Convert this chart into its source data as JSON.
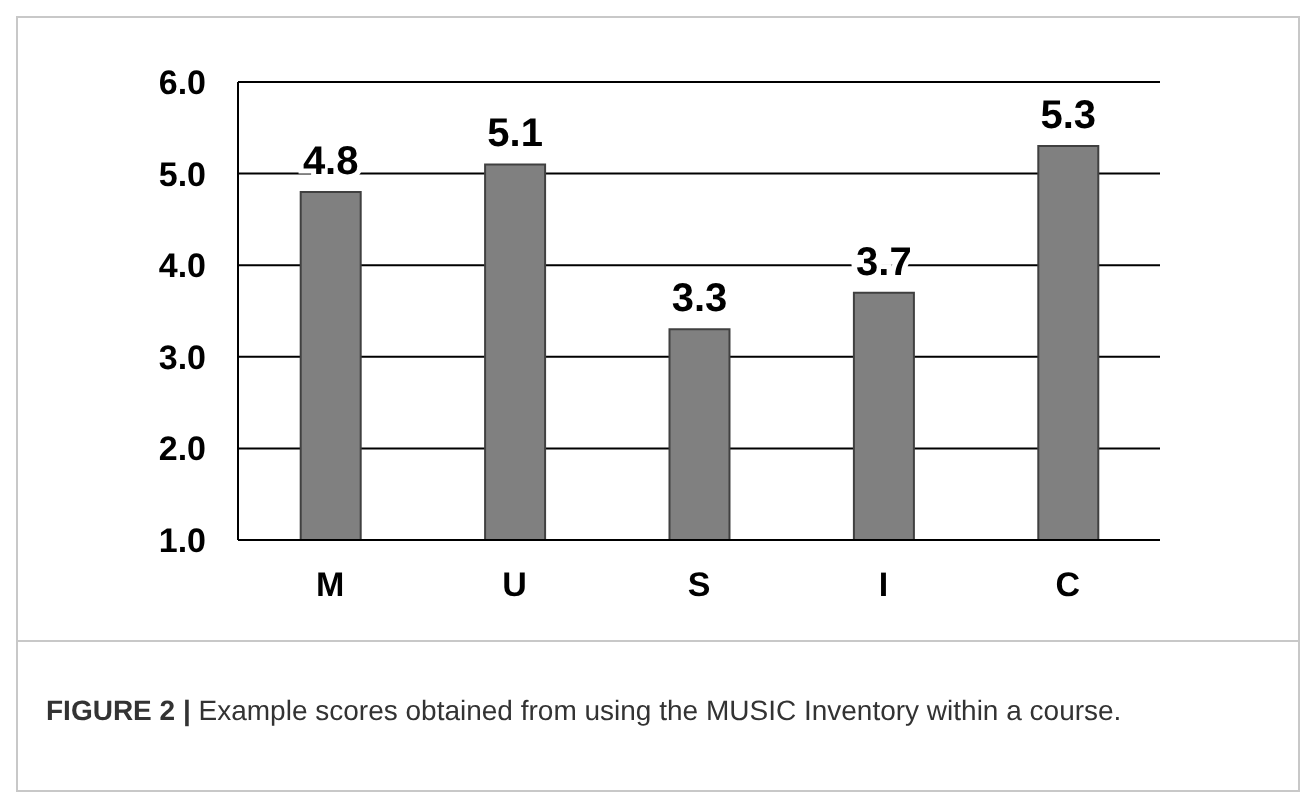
{
  "chart_data": {
    "type": "bar",
    "categories": [
      "M",
      "U",
      "S",
      "I",
      "C"
    ],
    "values": [
      4.8,
      5.1,
      3.3,
      3.7,
      5.3
    ],
    "color": "#808080",
    "ylim": [
      1,
      6
    ],
    "yticks": [
      {
        "value": 1,
        "label": "1.0"
      },
      {
        "value": 2,
        "label": "2.0"
      },
      {
        "value": 3,
        "label": "3.0"
      },
      {
        "value": 4,
        "label": "4.0"
      },
      {
        "value": 5,
        "label": "5.0"
      },
      {
        "value": 6,
        "label": "6.0"
      }
    ],
    "grid": "y",
    "data_labels": true,
    "annotations": [
      "FIGURE 2 |",
      "Example scores obtained from using the MUSIC Inventory within a course."
    ]
  }
}
